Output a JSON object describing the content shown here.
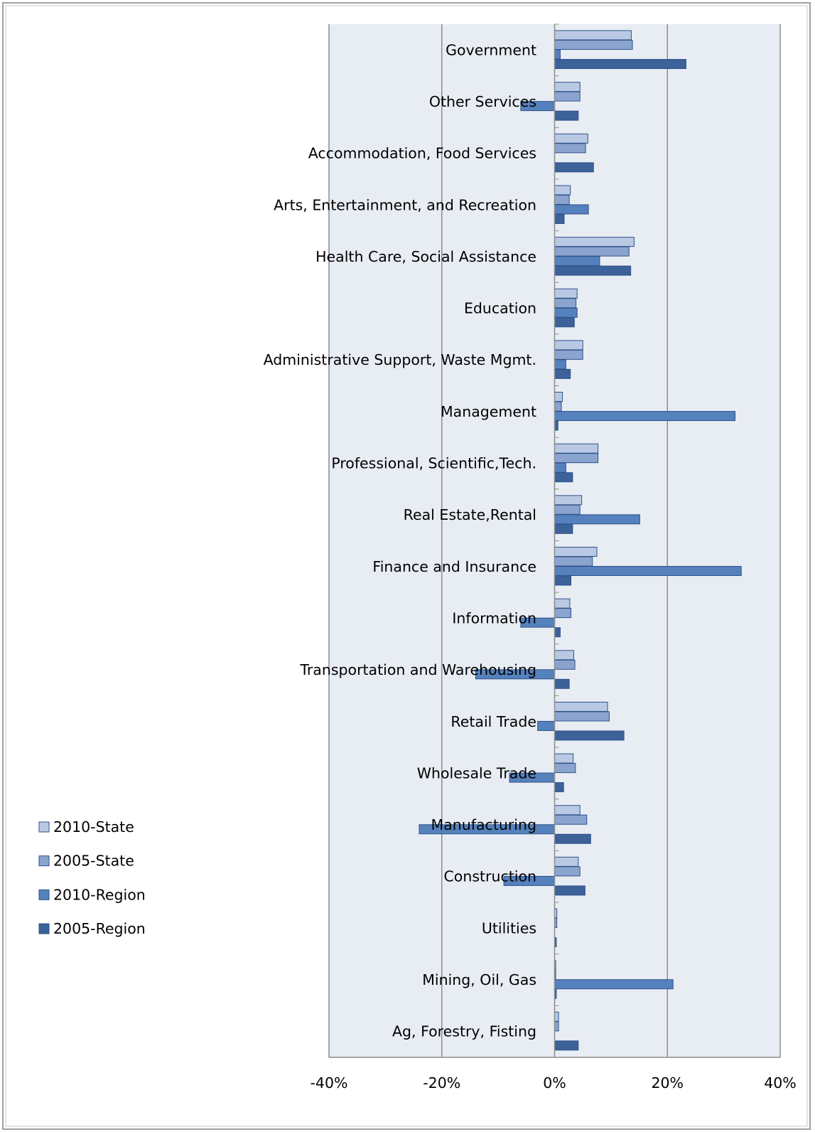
{
  "chart_data": {
    "type": "bar",
    "orientation": "horizontal",
    "categories": [
      "Government",
      "Other Services",
      "Accommodation, Food Services",
      "Arts, Entertainment, and Recreation",
      "Health Care, Social Assistance",
      "Education",
      "Administrative Support, Waste Mgmt.",
      "Management",
      "Professional, Scientific,Tech.",
      "Real Estate,Rental",
      "Finance and Insurance",
      "Information",
      "Transportation and Warehousing",
      "Retail Trade",
      "Wholesale Trade",
      "Manufacturing",
      "Construction",
      "Utilities",
      "Mining, Oil, Gas",
      "Ag, Forestry, Fisting"
    ],
    "series": [
      {
        "name": "2010-State",
        "color": "#b9c9e4",
        "values": [
          13.6,
          4.5,
          5.9,
          2.8,
          14.1,
          4.0,
          5.0,
          1.4,
          7.7,
          4.8,
          7.5,
          2.7,
          3.4,
          9.4,
          3.3,
          4.5,
          4.2,
          0.4,
          0.2,
          0.7
        ]
      },
      {
        "name": "2005-State",
        "color": "#8aa4cf",
        "values": [
          13.8,
          4.5,
          5.5,
          2.6,
          13.2,
          3.8,
          5.0,
          1.2,
          7.7,
          4.5,
          6.7,
          2.9,
          3.6,
          9.7,
          3.7,
          5.7,
          4.5,
          0.4,
          0.2,
          0.7
        ]
      },
      {
        "name": "2010-Region",
        "color": "#5581bc",
        "values": [
          1.0,
          -6.0,
          0.0,
          6.0,
          8.0,
          4.0,
          2.0,
          32.0,
          2.0,
          15.1,
          33.1,
          -6.0,
          -14.0,
          -3.0,
          -8.0,
          -24.0,
          -9.0,
          0.0,
          21.0,
          0.0
        ]
      },
      {
        "name": "2005-Region",
        "color": "#3d6299",
        "values": [
          23.3,
          4.2,
          6.9,
          1.7,
          13.5,
          3.5,
          2.8,
          0.6,
          3.2,
          3.2,
          2.9,
          1.0,
          2.6,
          12.3,
          1.6,
          6.4,
          5.4,
          0.3,
          0.3,
          4.2
        ]
      }
    ],
    "xlim": [
      -40,
      40
    ],
    "x_ticks": [
      "-40%",
      "-20%",
      "0%",
      "20%",
      "40%"
    ],
    "x_tick_values": [
      -40,
      -20,
      0,
      20,
      40
    ],
    "grid": true,
    "legend_position": "left-bottom",
    "plot_background": "#e8edf4",
    "title": "",
    "xlabel": "",
    "ylabel": ""
  }
}
